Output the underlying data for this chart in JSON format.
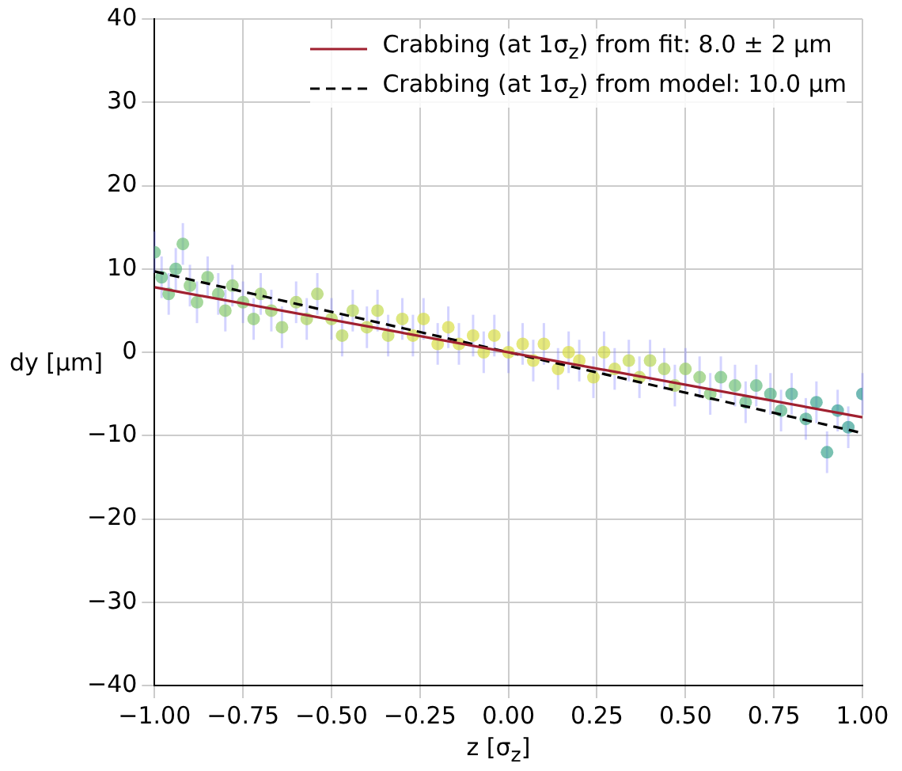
{
  "chart_data": {
    "type": "scatter",
    "xlabel": "z [σ$_{z}$]",
    "ylabel": "dy [μm]",
    "xlim": [
      -1,
      1
    ],
    "ylim": [
      -40,
      40
    ],
    "xticks": [
      {
        "value": -1,
        "label": "−1.00"
      },
      {
        "value": -0.75,
        "label": "−0.75"
      },
      {
        "value": -0.5,
        "label": "−0.50"
      },
      {
        "value": -0.25,
        "label": "−0.25"
      },
      {
        "value": 0,
        "label": "0.00"
      },
      {
        "value": 0.25,
        "label": "0.25"
      },
      {
        "value": 0.5,
        "label": "0.50"
      },
      {
        "value": 0.75,
        "label": "0.75"
      },
      {
        "value": 1,
        "label": "1.00"
      }
    ],
    "yticks": [
      {
        "value": -40,
        "label": "−40"
      },
      {
        "value": -30,
        "label": "−30"
      },
      {
        "value": -20,
        "label": "−20"
      },
      {
        "value": -10,
        "label": "−10"
      },
      0,
      10,
      20,
      30,
      40
    ],
    "grid": true,
    "legend": "top right",
    "series": [
      {
        "type": "scatter",
        "marker": "circle",
        "x": [
          -1.0,
          -0.98,
          -0.96,
          -0.94,
          -0.92,
          -0.9,
          -0.88,
          -0.85,
          -0.82,
          -0.8,
          -0.78,
          -0.75,
          -0.72,
          -0.7,
          -0.67,
          -0.64,
          -0.6,
          -0.57,
          -0.54,
          -0.5,
          -0.47,
          -0.44,
          -0.4,
          -0.37,
          -0.34,
          -0.3,
          -0.27,
          -0.24,
          -0.2,
          -0.17,
          -0.14,
          -0.1,
          -0.07,
          -0.04,
          0,
          0.04,
          0.07,
          0.1,
          0.14,
          0.17,
          0.2,
          0.24,
          0.27,
          0.3,
          0.34,
          0.37,
          0.4,
          0.44,
          0.47,
          0.5,
          0.54,
          0.57,
          0.6,
          0.64,
          0.67,
          0.7,
          0.74,
          0.77,
          0.8,
          0.84,
          0.87,
          0.9,
          0.93,
          0.96,
          1.0
        ],
        "values": [
          12,
          9,
          7,
          10,
          13,
          8,
          6,
          9,
          7,
          5,
          8,
          6,
          4,
          7,
          5,
          3,
          6,
          4,
          7,
          4,
          2,
          5,
          3,
          5,
          2,
          4,
          2,
          4,
          1,
          3,
          1,
          2,
          0,
          2,
          0,
          1,
          -1,
          1,
          -2,
          0,
          -1,
          -3,
          0,
          -2,
          -1,
          -3,
          -1,
          -2,
          -4,
          -2,
          -3,
          -5,
          -3,
          -4,
          -6,
          -4,
          -5,
          -7,
          -5,
          -8,
          -6,
          -12,
          -7,
          -9,
          -5
        ],
        "errors": [
          2.5,
          2.5,
          2.5,
          2.5,
          2.5,
          2.5,
          2.5,
          2.5,
          2.5,
          2.5,
          2.5,
          2.5,
          2.5,
          2.5,
          2.5,
          2.5,
          2.5,
          2.5,
          2.5,
          2.5,
          2.5,
          2.5,
          2.5,
          2.5,
          2.5,
          2.5,
          2.5,
          2.5,
          2.5,
          2.5,
          2.5,
          2.5,
          2.5,
          2.5,
          2.5,
          2.5,
          2.5,
          2.5,
          2.5,
          2.5,
          2.5,
          2.5,
          2.5,
          2.5,
          2.5,
          2.5,
          2.5,
          2.5,
          2.5,
          2.5,
          2.5,
          2.5,
          2.5,
          2.5,
          2.5,
          2.5,
          2.5,
          2.5,
          2.5,
          2.5,
          2.5,
          2.5,
          2.5,
          2.5,
          2.5
        ],
        "colors": [
          "#5cb87a",
          "#5cb87a",
          "#6cc070",
          "#5cb87a",
          "#6cc070",
          "#7ac46a",
          "#7ac46a",
          "#7ac46a",
          "#7ac46a",
          "#86c866",
          "#86c866",
          "#86c866",
          "#86c866",
          "#96cc5e",
          "#96cc5e",
          "#96cc5e",
          "#a6d156",
          "#a6d156",
          "#a6d156",
          "#b4d54e",
          "#b4d54e",
          "#b4d54e",
          "#c2d946",
          "#c2d946",
          "#c2d946",
          "#ccdb40",
          "#d4dc3c",
          "#d4dc3c",
          "#d8dd3a",
          "#d8dd3a",
          "#d8dd3a",
          "#d8dd3a",
          "#d8dd3a",
          "#d8dd3a",
          "#d8dd3a",
          "#d8dd3a",
          "#d8dd3a",
          "#d8dd3a",
          "#d8dd3a",
          "#d8dd3a",
          "#d8dd3a",
          "#d4dc3c",
          "#d4dc3c",
          "#ccdb40",
          "#c2d946",
          "#c2d946",
          "#b4d54e",
          "#a6d156",
          "#a6d156",
          "#96cc5e",
          "#86c866",
          "#7ac46a",
          "#6cc070",
          "#6cc070",
          "#5cb87a",
          "#5cb87a",
          "#4cb080",
          "#4cb080",
          "#40a886",
          "#40a886",
          "#36a28a",
          "#36a28a",
          "#2e9c8e",
          "#2e9c8e",
          "#2a9690"
        ]
      },
      {
        "type": "line",
        "name": "Crabbing (at 1σ$_{z}$) from fit: 8.0 ± 2 μm",
        "color": "#a02030",
        "line_style": "solid",
        "marker": "none",
        "x": [
          -1,
          1
        ],
        "values": [
          7.8,
          -7.8
        ]
      },
      {
        "type": "line",
        "name": "Crabbing (at 1σ$_{z}$) from model: 10.0 μm",
        "color": "#000000",
        "line_style": "dashed",
        "marker": "none",
        "x": [
          -1,
          1
        ],
        "values": [
          9.7,
          -9.7
        ]
      }
    ]
  }
}
